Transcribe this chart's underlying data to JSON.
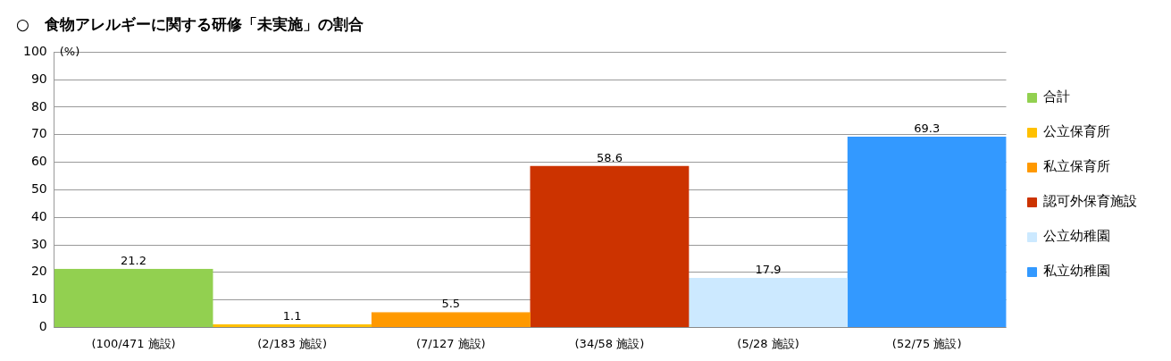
{
  "chart_data": {
    "type": "bar",
    "title": "○　食物アレルギーに関する研修「未実施」の割合",
    "ylabel": "(%)",
    "categories": [
      "(100/471 施設)",
      "(2/183 施設)",
      "(7/127 施設)",
      "(34/58 施設)",
      "(5/28 施設)",
      "(52/75 施設)"
    ],
    "series": [
      {
        "name": "合計",
        "color": "#92d050",
        "values": [
          21.2,
          null,
          null,
          null,
          null,
          null
        ]
      },
      {
        "name": "公立保育所",
        "color": "#ffc000",
        "values": [
          null,
          1.1,
          null,
          null,
          null,
          null
        ]
      },
      {
        "name": "私立保育所",
        "color": "#ff9900",
        "values": [
          null,
          null,
          5.5,
          null,
          null,
          null
        ]
      },
      {
        "name": "認可外保育施設",
        "color": "#cc3300",
        "values": [
          null,
          null,
          null,
          58.6,
          null,
          null
        ]
      },
      {
        "name": "公立幼稚園",
        "color": "#cce9ff",
        "values": [
          null,
          null,
          null,
          null,
          17.9,
          null
        ]
      },
      {
        "name": "私立幼稚園",
        "color": "#3399ff",
        "values": [
          null,
          null,
          null,
          null,
          null,
          69.3
        ]
      }
    ],
    "ylim": [
      0,
      100
    ],
    "yticks": [
      0,
      10,
      20,
      30,
      40,
      50,
      60,
      70,
      80,
      90,
      100
    ],
    "grid": "y",
    "legend": "right",
    "data_labels": true
  }
}
